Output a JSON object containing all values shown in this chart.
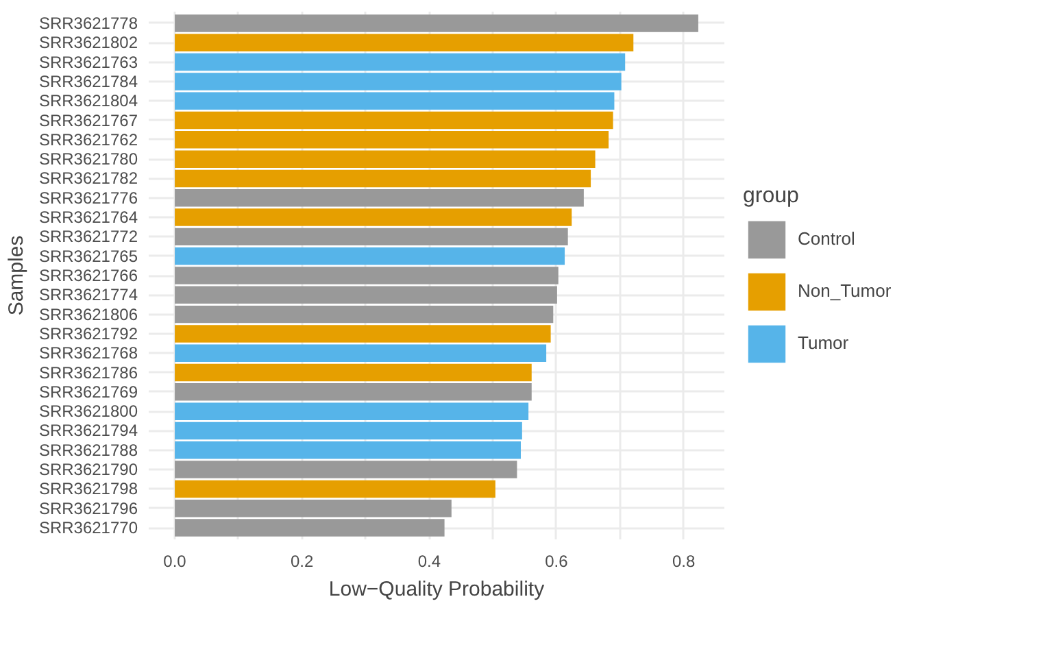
{
  "chart_data": {
    "type": "bar",
    "orientation": "horizontal",
    "xlabel": "Low−Quality Probability",
    "ylabel": "Samples",
    "legend_title": "group",
    "legend": "right",
    "grid": true,
    "categories": [
      "SRR3621778",
      "SRR3621802",
      "SRR3621763",
      "SRR3621784",
      "SRR3621804",
      "SRR3621767",
      "SRR3621762",
      "SRR3621780",
      "SRR3621782",
      "SRR3621776",
      "SRR3621764",
      "SRR3621772",
      "SRR3621765",
      "SRR3621766",
      "SRR3621774",
      "SRR3621806",
      "SRR3621792",
      "SRR3621768",
      "SRR3621786",
      "SRR3621769",
      "SRR3621800",
      "SRR3621794",
      "SRR3621788",
      "SRR3621790",
      "SRR3621798",
      "SRR3621796",
      "SRR3621770"
    ],
    "series": [
      {
        "name": "Control",
        "color": "#999999",
        "values": [
          0.823,
          null,
          null,
          null,
          null,
          null,
          null,
          null,
          null,
          0.643,
          null,
          0.618,
          null,
          0.603,
          0.601,
          0.595,
          null,
          null,
          null,
          0.561,
          null,
          null,
          null,
          0.538,
          null,
          0.435,
          0.424
        ]
      },
      {
        "name": "Non_Tumor",
        "color": "#e69f00",
        "values": [
          null,
          0.721,
          null,
          null,
          null,
          0.689,
          0.682,
          0.661,
          0.654,
          null,
          0.624,
          null,
          null,
          null,
          null,
          null,
          0.591,
          null,
          0.561,
          null,
          null,
          null,
          null,
          null,
          0.504,
          null,
          null
        ]
      },
      {
        "name": "Tumor",
        "color": "#56b4e9",
        "values": [
          null,
          null,
          0.708,
          0.702,
          0.691,
          null,
          null,
          null,
          null,
          null,
          null,
          null,
          0.613,
          null,
          null,
          null,
          null,
          0.584,
          null,
          null,
          0.556,
          0.546,
          0.544,
          null,
          null,
          null,
          null
        ]
      }
    ],
    "xlim": [
      -0.041,
      0.864
    ],
    "xticks": [
      {
        "value": 0.0,
        "label": "0.0"
      },
      {
        "value": 0.1,
        "label": null
      },
      {
        "value": 0.2,
        "label": "0.2"
      },
      {
        "value": 0.3,
        "label": null
      },
      {
        "value": 0.4,
        "label": "0.4"
      },
      {
        "value": 0.5,
        "label": null
      },
      {
        "value": 0.6,
        "label": "0.6"
      },
      {
        "value": 0.7,
        "label": null
      },
      {
        "value": 0.8,
        "label": "0.8"
      }
    ]
  }
}
